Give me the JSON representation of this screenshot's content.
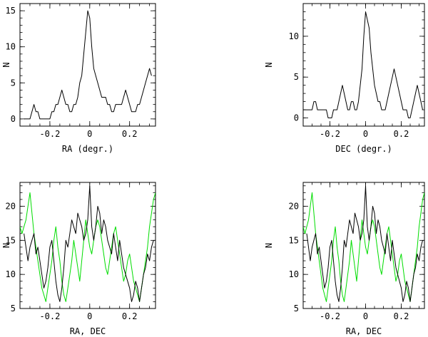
{
  "colors": {
    "black": "#000000",
    "green": "#00dd00"
  },
  "chart_data": [
    {
      "type": "line",
      "title": "",
      "xlabel": "RA (degr.)",
      "ylabel": "N",
      "xlim": [
        -0.35,
        0.33
      ],
      "ylim": [
        -1,
        16
      ],
      "xticks": [
        -0.2,
        0,
        0.2
      ],
      "xtick_labels": [
        "-0.2",
        "0",
        "0.2"
      ],
      "yticks": [
        0,
        5,
        10,
        15
      ],
      "ytick_labels": [
        "0",
        "5",
        "10",
        "15"
      ],
      "series": [
        {
          "name": "RA",
          "color": "#000000",
          "x": [
            -0.33,
            -0.3,
            -0.29,
            -0.28,
            -0.27,
            -0.26,
            -0.25,
            -0.24,
            -0.23,
            -0.22,
            -0.21,
            -0.2,
            -0.19,
            -0.18,
            -0.17,
            -0.16,
            -0.15,
            -0.14,
            -0.13,
            -0.12,
            -0.11,
            -0.1,
            -0.09,
            -0.08,
            -0.07,
            -0.06,
            -0.05,
            -0.04,
            -0.03,
            -0.02,
            -0.01,
            0.0,
            0.01,
            0.02,
            0.03,
            0.04,
            0.05,
            0.06,
            0.07,
            0.08,
            0.09,
            0.1,
            0.11,
            0.12,
            0.13,
            0.14,
            0.15,
            0.16,
            0.17,
            0.18,
            0.19,
            0.2,
            0.21,
            0.22,
            0.23,
            0.24,
            0.25,
            0.26,
            0.27,
            0.28,
            0.29,
            0.3,
            0.31
          ],
          "y": [
            0,
            0,
            1,
            2,
            1,
            1,
            0,
            0,
            0,
            0,
            0,
            0,
            1,
            1,
            2,
            2,
            3,
            4,
            3,
            2,
            2,
            1,
            1,
            2,
            2,
            3,
            5,
            6,
            9,
            12,
            15,
            14,
            10,
            7,
            6,
            5,
            4,
            3,
            3,
            3,
            2,
            2,
            1,
            1,
            2,
            2,
            2,
            2,
            3,
            4,
            3,
            2,
            1,
            1,
            1,
            2,
            2,
            3,
            4,
            5,
            6,
            7,
            6
          ]
        }
      ]
    },
    {
      "type": "line",
      "title": "",
      "xlabel": "DEC (degr.)",
      "ylabel": "N",
      "xlim": [
        -0.35,
        0.33
      ],
      "ylim": [
        -1,
        14
      ],
      "xticks": [
        -0.2,
        0,
        0.2
      ],
      "xtick_labels": [
        "-0.2",
        "0",
        "0.2"
      ],
      "yticks": [
        0,
        5,
        10
      ],
      "ytick_labels": [
        "0",
        "5",
        "10"
      ],
      "series": [
        {
          "name": "DEC",
          "color": "#000000",
          "x": [
            -0.35,
            -0.33,
            -0.32,
            -0.31,
            -0.3,
            -0.29,
            -0.28,
            -0.27,
            -0.26,
            -0.25,
            -0.24,
            -0.23,
            -0.22,
            -0.21,
            -0.2,
            -0.19,
            -0.18,
            -0.17,
            -0.16,
            -0.15,
            -0.14,
            -0.13,
            -0.12,
            -0.11,
            -0.1,
            -0.09,
            -0.08,
            -0.07,
            -0.06,
            -0.05,
            -0.04,
            -0.03,
            -0.02,
            -0.01,
            0.0,
            0.01,
            0.02,
            0.03,
            0.04,
            0.05,
            0.06,
            0.07,
            0.08,
            0.09,
            0.1,
            0.11,
            0.12,
            0.13,
            0.14,
            0.15,
            0.16,
            0.17,
            0.18,
            0.19,
            0.2,
            0.21,
            0.22,
            0.23,
            0.24,
            0.25,
            0.26,
            0.27,
            0.28,
            0.29,
            0.3,
            0.31,
            0.32
          ],
          "y": [
            1,
            1,
            1,
            1,
            1,
            2,
            2,
            1,
            1,
            1,
            1,
            1,
            1,
            0,
            0,
            0,
            1,
            1,
            1,
            2,
            3,
            4,
            3,
            2,
            1,
            1,
            2,
            2,
            1,
            1,
            2,
            4,
            6,
            10,
            13,
            12,
            11,
            8,
            6,
            4,
            3,
            2,
            2,
            1,
            1,
            1,
            2,
            3,
            4,
            5,
            6,
            5,
            4,
            3,
            2,
            1,
            1,
            1,
            0,
            0,
            1,
            2,
            3,
            4,
            3,
            2,
            1
          ]
        }
      ]
    },
    {
      "type": "line",
      "title": "",
      "xlabel": "RA, DEC",
      "ylabel": "N",
      "xlim": [
        -0.35,
        0.33
      ],
      "ylim": [
        5,
        23.5
      ],
      "xticks": [
        -0.2,
        0,
        0.2
      ],
      "xtick_labels": [
        "-0.2",
        "0",
        "0.2"
      ],
      "yticks": [
        5,
        10,
        15,
        20
      ],
      "ytick_labels": [
        "5",
        "10",
        "15",
        "20"
      ],
      "series": [
        {
          "name": "RA",
          "color": "#000000",
          "x": [
            -0.33,
            -0.32,
            -0.31,
            -0.3,
            -0.29,
            -0.28,
            -0.27,
            -0.26,
            -0.25,
            -0.24,
            -0.23,
            -0.22,
            -0.21,
            -0.2,
            -0.19,
            -0.18,
            -0.17,
            -0.16,
            -0.15,
            -0.14,
            -0.13,
            -0.12,
            -0.11,
            -0.1,
            -0.09,
            -0.08,
            -0.07,
            -0.06,
            -0.05,
            -0.04,
            -0.03,
            -0.02,
            -0.01,
            0.0,
            0.01,
            0.02,
            0.03,
            0.04,
            0.05,
            0.06,
            0.07,
            0.08,
            0.09,
            0.1,
            0.11,
            0.12,
            0.13,
            0.14,
            0.15,
            0.16,
            0.17,
            0.18,
            0.19,
            0.2,
            0.21,
            0.22,
            0.23,
            0.24,
            0.25,
            0.26,
            0.27,
            0.28,
            0.29,
            0.3,
            0.31,
            0.32
          ],
          "y": [
            16,
            14,
            12,
            14,
            15,
            16,
            13,
            14,
            12,
            10,
            8,
            9,
            11,
            14,
            15,
            12,
            9,
            7,
            6,
            8,
            11,
            15,
            14,
            16,
            18,
            17,
            16,
            19,
            18,
            17,
            15,
            16,
            18,
            23,
            17,
            15,
            17,
            20,
            19,
            16,
            18,
            17,
            15,
            14,
            13,
            16,
            14,
            12,
            15,
            13,
            11,
            10,
            9,
            8,
            6,
            7,
            9,
            8,
            6,
            8,
            10,
            11,
            13,
            12,
            14,
            15
          ]
        },
        {
          "name": "DEC",
          "color": "#00dd00",
          "x": [
            -0.35,
            -0.34,
            -0.33,
            -0.32,
            -0.31,
            -0.3,
            -0.29,
            -0.28,
            -0.27,
            -0.26,
            -0.25,
            -0.24,
            -0.23,
            -0.22,
            -0.21,
            -0.2,
            -0.19,
            -0.18,
            -0.17,
            -0.16,
            -0.15,
            -0.14,
            -0.13,
            -0.12,
            -0.11,
            -0.1,
            -0.09,
            -0.08,
            -0.07,
            -0.06,
            -0.05,
            -0.04,
            -0.03,
            -0.02,
            -0.01,
            0.0,
            0.01,
            0.02,
            0.03,
            0.04,
            0.05,
            0.06,
            0.07,
            0.08,
            0.09,
            0.1,
            0.11,
            0.12,
            0.13,
            0.14,
            0.15,
            0.16,
            0.17,
            0.18,
            0.19,
            0.2,
            0.21,
            0.22,
            0.23,
            0.24,
            0.25,
            0.26,
            0.27,
            0.28,
            0.29,
            0.3,
            0.31,
            0.32,
            0.33
          ],
          "y": [
            17,
            16,
            17,
            18,
            20,
            22,
            19,
            16,
            14,
            12,
            10,
            8,
            7,
            6,
            8,
            10,
            12,
            15,
            17,
            14,
            12,
            9,
            7,
            6,
            8,
            10,
            12,
            15,
            13,
            11,
            9,
            12,
            15,
            18,
            16,
            14,
            13,
            15,
            17,
            18,
            17,
            15,
            13,
            11,
            10,
            12,
            14,
            16,
            17,
            15,
            13,
            11,
            9,
            10,
            12,
            13,
            11,
            9,
            8,
            7,
            6,
            8,
            10,
            12,
            14,
            17,
            19,
            21,
            22
          ]
        }
      ]
    },
    {
      "type": "line",
      "title": "",
      "xlabel": "RA, DEC",
      "ylabel": "N",
      "xlim": [
        -0.35,
        0.33
      ],
      "ylim": [
        5,
        23.5
      ],
      "xticks": [
        -0.2,
        0,
        0.2
      ],
      "xtick_labels": [
        "-0.2",
        "0",
        "0.2"
      ],
      "yticks": [
        5,
        10,
        15,
        20
      ],
      "ytick_labels": [
        "5",
        "10",
        "15",
        "20"
      ],
      "series": [
        {
          "name": "RA",
          "color": "#000000",
          "x": [
            -0.33,
            -0.32,
            -0.31,
            -0.3,
            -0.29,
            -0.28,
            -0.27,
            -0.26,
            -0.25,
            -0.24,
            -0.23,
            -0.22,
            -0.21,
            -0.2,
            -0.19,
            -0.18,
            -0.17,
            -0.16,
            -0.15,
            -0.14,
            -0.13,
            -0.12,
            -0.11,
            -0.1,
            -0.09,
            -0.08,
            -0.07,
            -0.06,
            -0.05,
            -0.04,
            -0.03,
            -0.02,
            -0.01,
            0.0,
            0.01,
            0.02,
            0.03,
            0.04,
            0.05,
            0.06,
            0.07,
            0.08,
            0.09,
            0.1,
            0.11,
            0.12,
            0.13,
            0.14,
            0.15,
            0.16,
            0.17,
            0.18,
            0.19,
            0.2,
            0.21,
            0.22,
            0.23,
            0.24,
            0.25,
            0.26,
            0.27,
            0.28,
            0.29,
            0.3,
            0.31,
            0.32
          ],
          "y": [
            16,
            14,
            12,
            14,
            15,
            16,
            13,
            14,
            12,
            10,
            8,
            9,
            11,
            14,
            15,
            12,
            9,
            7,
            6,
            8,
            11,
            15,
            14,
            16,
            18,
            17,
            16,
            19,
            18,
            17,
            15,
            16,
            18,
            23,
            17,
            15,
            17,
            20,
            19,
            16,
            18,
            17,
            15,
            14,
            13,
            16,
            14,
            12,
            15,
            13,
            11,
            10,
            9,
            8,
            6,
            7,
            9,
            8,
            6,
            8,
            10,
            11,
            13,
            12,
            14,
            15
          ]
        },
        {
          "name": "DEC",
          "color": "#00dd00",
          "x": [
            -0.35,
            -0.34,
            -0.33,
            -0.32,
            -0.31,
            -0.3,
            -0.29,
            -0.28,
            -0.27,
            -0.26,
            -0.25,
            -0.24,
            -0.23,
            -0.22,
            -0.21,
            -0.2,
            -0.19,
            -0.18,
            -0.17,
            -0.16,
            -0.15,
            -0.14,
            -0.13,
            -0.12,
            -0.11,
            -0.1,
            -0.09,
            -0.08,
            -0.07,
            -0.06,
            -0.05,
            -0.04,
            -0.03,
            -0.02,
            -0.01,
            0.0,
            0.01,
            0.02,
            0.03,
            0.04,
            0.05,
            0.06,
            0.07,
            0.08,
            0.09,
            0.1,
            0.11,
            0.12,
            0.13,
            0.14,
            0.15,
            0.16,
            0.17,
            0.18,
            0.19,
            0.2,
            0.21,
            0.22,
            0.23,
            0.24,
            0.25,
            0.26,
            0.27,
            0.28,
            0.29,
            0.3,
            0.31,
            0.32,
            0.33
          ],
          "y": [
            17,
            16,
            17,
            18,
            20,
            22,
            19,
            16,
            14,
            12,
            10,
            8,
            7,
            6,
            8,
            10,
            12,
            15,
            17,
            14,
            12,
            9,
            7,
            6,
            8,
            10,
            12,
            15,
            13,
            11,
            9,
            12,
            15,
            18,
            16,
            14,
            13,
            15,
            17,
            18,
            17,
            15,
            13,
            11,
            10,
            12,
            14,
            16,
            17,
            15,
            13,
            11,
            9,
            10,
            12,
            13,
            11,
            9,
            8,
            7,
            6,
            8,
            10,
            12,
            14,
            17,
            19,
            21,
            22
          ]
        }
      ]
    }
  ]
}
